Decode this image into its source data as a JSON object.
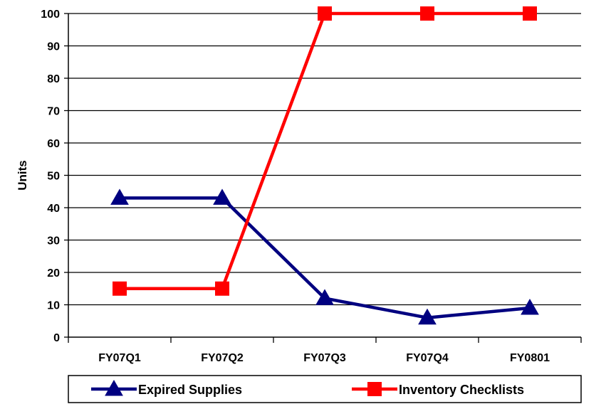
{
  "chart_data": {
    "type": "line",
    "title": "",
    "xlabel": "",
    "ylabel": "Units",
    "ylim": [
      0,
      100
    ],
    "yticks": [
      0,
      10,
      20,
      30,
      40,
      50,
      60,
      70,
      80,
      90,
      100
    ],
    "ytick_labels": [
      "0",
      "10",
      "20",
      "30",
      "40",
      "50",
      "60",
      "70",
      "80",
      "90",
      "100"
    ],
    "grid": true,
    "legend_position": "bottom",
    "categories": [
      "FY07Q1",
      "FY07Q2",
      "FY07Q3",
      "FY07Q4",
      "FY0801"
    ],
    "series": [
      {
        "name": "Expired Supplies",
        "values": [
          43,
          43,
          12,
          6,
          9
        ],
        "color": "#000080",
        "marker": "triangle"
      },
      {
        "name": "Inventory Checklists",
        "values": [
          15,
          15,
          100,
          100,
          100
        ],
        "color": "#ff0000",
        "marker": "square"
      }
    ]
  }
}
